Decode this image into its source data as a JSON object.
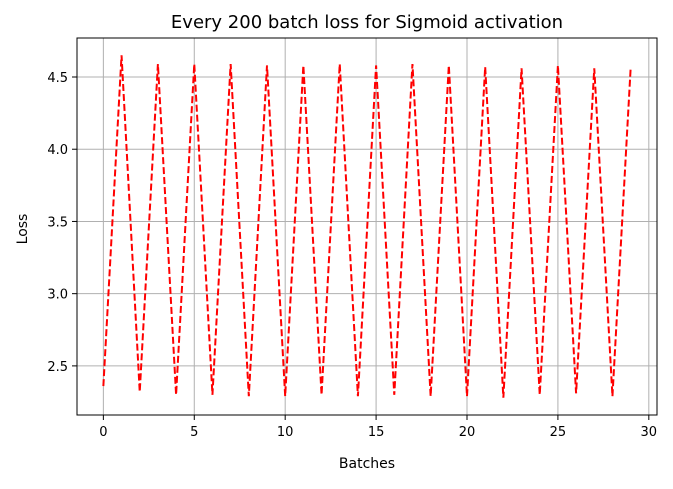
{
  "chart_data": {
    "type": "line",
    "title": "Every 200 batch loss for Sigmoid activation",
    "xlabel": "Batches",
    "ylabel": "Loss",
    "xlim": [
      -1.45,
      30.45
    ],
    "ylim": [
      2.16,
      4.77
    ],
    "xticks": [
      0,
      5,
      10,
      15,
      20,
      25,
      30
    ],
    "yticks": [
      2.5,
      3.0,
      3.5,
      4.0,
      4.5
    ],
    "xtick_labels": [
      "0",
      "5",
      "10",
      "15",
      "20",
      "25",
      "30"
    ],
    "ytick_labels": [
      "2.5",
      "3.0",
      "3.5",
      "4.0",
      "4.5"
    ],
    "grid": true,
    "legend": false,
    "series": [
      {
        "color": "#ff0000",
        "line_style": "dashed",
        "x": [
          0,
          1,
          2,
          3,
          4,
          5,
          6,
          7,
          8,
          9,
          10,
          11,
          12,
          13,
          14,
          15,
          16,
          17,
          18,
          19,
          20,
          21,
          22,
          23,
          24,
          25,
          26,
          27,
          28,
          29
        ],
        "y": [
          2.36,
          4.65,
          2.32,
          4.59,
          2.3,
          4.59,
          2.3,
          4.59,
          2.29,
          4.58,
          2.29,
          4.58,
          2.3,
          4.59,
          2.29,
          4.58,
          2.3,
          4.59,
          2.29,
          4.58,
          2.29,
          4.57,
          2.28,
          4.56,
          2.3,
          4.58,
          2.31,
          4.56,
          2.29,
          4.56
        ]
      }
    ]
  }
}
